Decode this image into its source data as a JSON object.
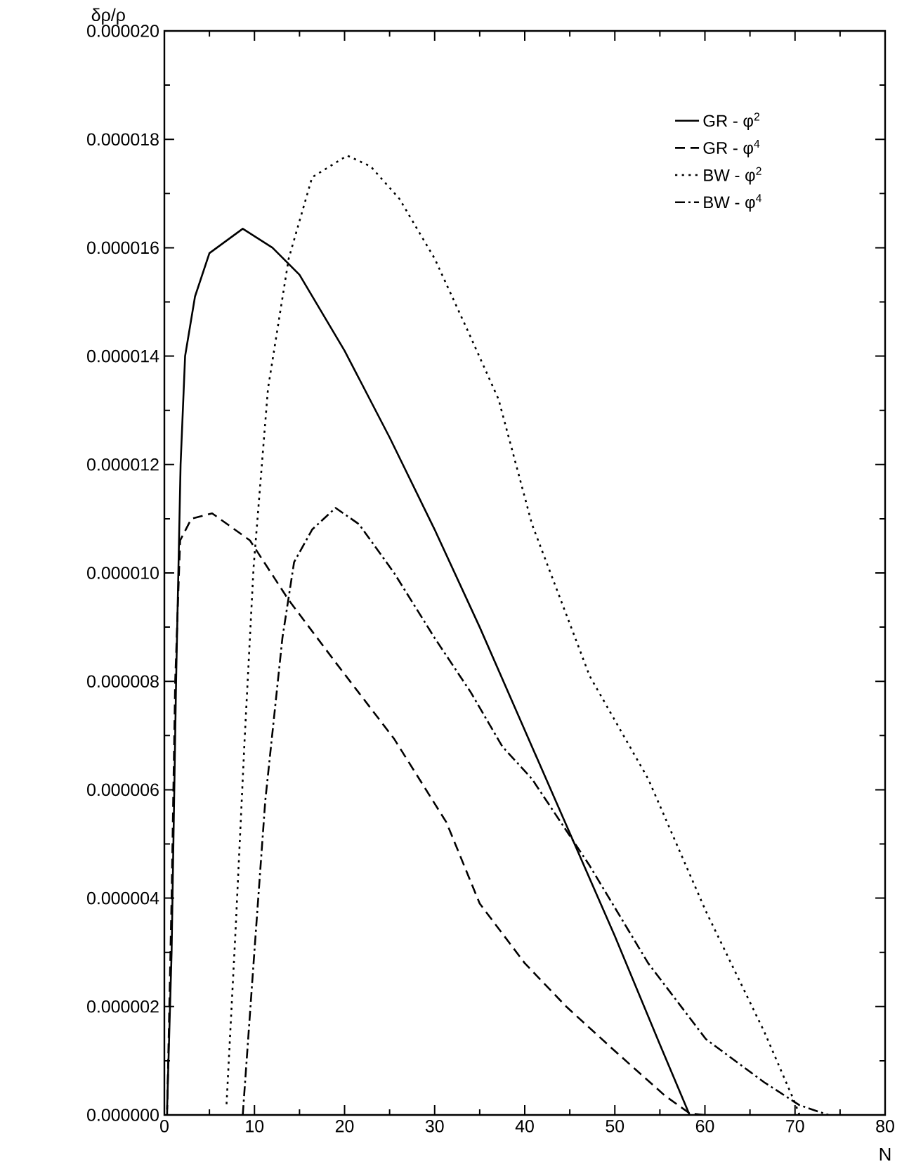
{
  "chart_data": {
    "type": "line",
    "xlabel": "N",
    "ylabel": "δρ/ρ",
    "xlim": [
      0,
      80
    ],
    "xticks": [
      0,
      10,
      20,
      30,
      40,
      50,
      60,
      70,
      80
    ],
    "ylim": [
      0,
      2e-05
    ],
    "yticks": [
      {
        "value": 0,
        "label": "0.000000"
      },
      {
        "value": 2e-06,
        "label": "0.000002"
      },
      {
        "value": 4e-06,
        "label": "0.000004"
      },
      {
        "value": 6e-06,
        "label": "0.000006"
      },
      {
        "value": 8e-06,
        "label": "0.000008"
      },
      {
        "value": 1e-05,
        "label": "0.000010"
      },
      {
        "value": 1.2e-05,
        "label": "0.000012"
      },
      {
        "value": 1.4e-05,
        "label": "0.000014"
      },
      {
        "value": 1.6e-05,
        "label": "0.000016"
      },
      {
        "value": 1.8e-05,
        "label": "0.000018"
      },
      {
        "value": 2e-05,
        "label": "0.000020"
      }
    ],
    "legend": "top right",
    "grid": false,
    "marker": "none",
    "series": [
      {
        "name": "GR - φ$^{2}$",
        "color": "#000000",
        "line_style": "solid",
        "x": [
          0.3,
          0.8,
          1.3,
          1.8,
          2.3,
          3.4,
          5,
          8.7,
          12,
          15,
          20,
          25,
          30,
          35,
          40,
          45,
          50,
          55,
          58.3
        ],
        "values": [
          1e-07,
          3e-06,
          8e-06,
          1.2e-05,
          1.4e-05,
          1.51e-05,
          1.59e-05,
          1.635e-05,
          1.6e-05,
          1.55e-05,
          1.41e-05,
          1.25e-05,
          1.08e-05,
          9e-06,
          7.1e-06,
          5.2e-06,
          3.3e-06,
          1.3e-06,
          0
        ]
      },
      {
        "name": "GR - φ$^{4}$",
        "color": "#000000",
        "line_style": "dashed",
        "x": [
          0.3,
          0.8,
          1.2,
          1.75,
          3,
          5.3,
          9.5,
          13.8,
          19,
          25.5,
          31.3,
          35,
          40,
          44.6,
          50,
          55.6,
          58.3,
          60
        ],
        "values": [
          0,
          4e-06,
          8e-06,
          1.06e-05,
          1.1e-05,
          1.11e-05,
          1.06e-05,
          9.5e-06,
          8.35e-06,
          6.94e-06,
          5.4e-06,
          3.9e-06,
          2.8e-06,
          2e-06,
          1.18e-06,
          3.5e-07,
          3e-08,
          0
        ]
      },
      {
        "name": "BW - φ$^{2}$",
        "color": "#000000",
        "line_style": "dotted",
        "x": [
          6.9,
          7.9,
          8.9,
          9.9,
          11.5,
          13.8,
          16.4,
          20.3,
          22.9,
          26.1,
          30,
          34,
          37.1,
          40.8,
          47.2,
          53.7,
          60.1,
          66.6,
          69.8,
          70.5
        ],
        "values": [
          2e-07,
          3.4e-06,
          6.9e-06,
          1.01e-05,
          1.34e-05,
          1.58e-05,
          1.73e-05,
          1.77e-05,
          1.75e-05,
          1.69e-05,
          1.58e-05,
          1.435e-05,
          1.32e-05,
          1.09e-05,
          8.1e-06,
          6.2e-06,
          3.76e-06,
          1.53e-06,
          3e-07,
          0
        ]
      },
      {
        "name": "BW - φ$^{4}$",
        "color": "#000000",
        "line_style": "dashdotted",
        "x": [
          8.7,
          9.9,
          11.2,
          13.1,
          14.4,
          16.4,
          19,
          21.6,
          25.5,
          30,
          34,
          37.5,
          40.8,
          47.2,
          53.7,
          60.1,
          66.6,
          70.5,
          73.7
        ],
        "values": [
          0,
          2.8e-06,
          5.8e-06,
          8.8e-06,
          1.02e-05,
          1.08e-05,
          1.12e-05,
          1.09e-05,
          1e-05,
          8.8e-06,
          7.8e-06,
          6.8e-06,
          6.2e-06,
          4.6e-06,
          2.8e-06,
          1.4e-06,
          6e-07,
          1.8e-07,
          0
        ]
      }
    ]
  }
}
